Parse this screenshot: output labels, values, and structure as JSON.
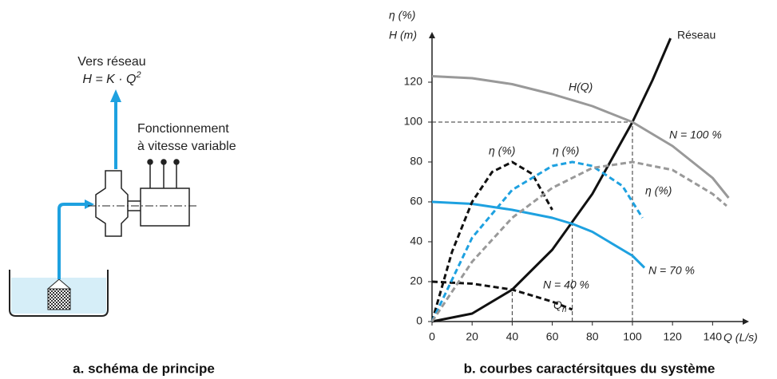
{
  "diagram": {
    "outlet_label": "Vers réseau",
    "formula": {
      "text": "H = K · Q",
      "sup": "2"
    },
    "drive_label": [
      "Fonctionnement",
      "à vitesse variable"
    ],
    "caption": "a. schéma de principe"
  },
  "chart_data": {
    "type": "line",
    "caption": "b. courbes caractérsitques du système",
    "y_label": [
      "η (%)",
      "H (m)"
    ],
    "x_label": "Q (L/s)",
    "xlim": [
      0,
      155
    ],
    "ylim": [
      0,
      142
    ],
    "xticks": [
      0,
      20,
      40,
      60,
      80,
      100,
      120,
      140
    ],
    "yticks": [
      0,
      20,
      40,
      60,
      80,
      100,
      120
    ],
    "series": [
      {
        "name": "Réseau",
        "color": "#111111",
        "dash": false,
        "x": [
          0,
          20,
          40,
          60,
          80,
          100,
          110,
          119
        ],
        "values": [
          0,
          4,
          16,
          36,
          64,
          100,
          121,
          142
        ]
      },
      {
        "name": "N = 100 %",
        "color": "#999999",
        "dash": false,
        "x": [
          0,
          20,
          40,
          60,
          80,
          100,
          120,
          140,
          148
        ],
        "values": [
          123,
          122,
          119,
          114,
          108,
          100,
          88,
          72,
          62
        ]
      },
      {
        "name": "N = 70 %",
        "color": "#1ea1e0",
        "dash": false,
        "x": [
          0,
          20,
          40,
          60,
          70,
          80,
          100,
          106
        ],
        "values": [
          60,
          59,
          56,
          52,
          49,
          45,
          33,
          27
        ]
      },
      {
        "name": "N = 40 %",
        "color": "#111111",
        "dash": true,
        "x": [
          0,
          20,
          40,
          60,
          70
        ],
        "values": [
          20,
          19,
          16,
          10,
          6
        ]
      },
      {
        "name": "η 40 %",
        "color": "#111111",
        "dash": true,
        "x": [
          0,
          10,
          20,
          30,
          40,
          50,
          60
        ],
        "values": [
          0,
          35,
          60,
          75,
          80,
          74,
          56
        ]
      },
      {
        "name": "η 70 %",
        "color": "#1ea1e0",
        "dash": true,
        "x": [
          0,
          20,
          40,
          60,
          70,
          80,
          95,
          105
        ],
        "values": [
          0,
          42,
          66,
          78,
          80,
          78,
          68,
          52
        ]
      },
      {
        "name": "η 100 %",
        "color": "#999999",
        "dash": true,
        "x": [
          0,
          20,
          40,
          60,
          80,
          100,
          120,
          140,
          147
        ],
        "values": [
          0,
          30,
          52,
          67,
          77,
          80,
          76,
          64,
          58
        ]
      }
    ],
    "guides": [
      [
        40,
        16
      ],
      [
        70,
        49
      ],
      [
        100,
        100
      ]
    ],
    "annotations": [
      "Réseau",
      "H(Q)",
      "N = 100 %",
      "η (%)",
      "η (%)",
      "η (%)",
      "N = 70 %",
      "N = 40 %",
      {
        "text": "Q",
        "sub": "n"
      }
    ]
  }
}
